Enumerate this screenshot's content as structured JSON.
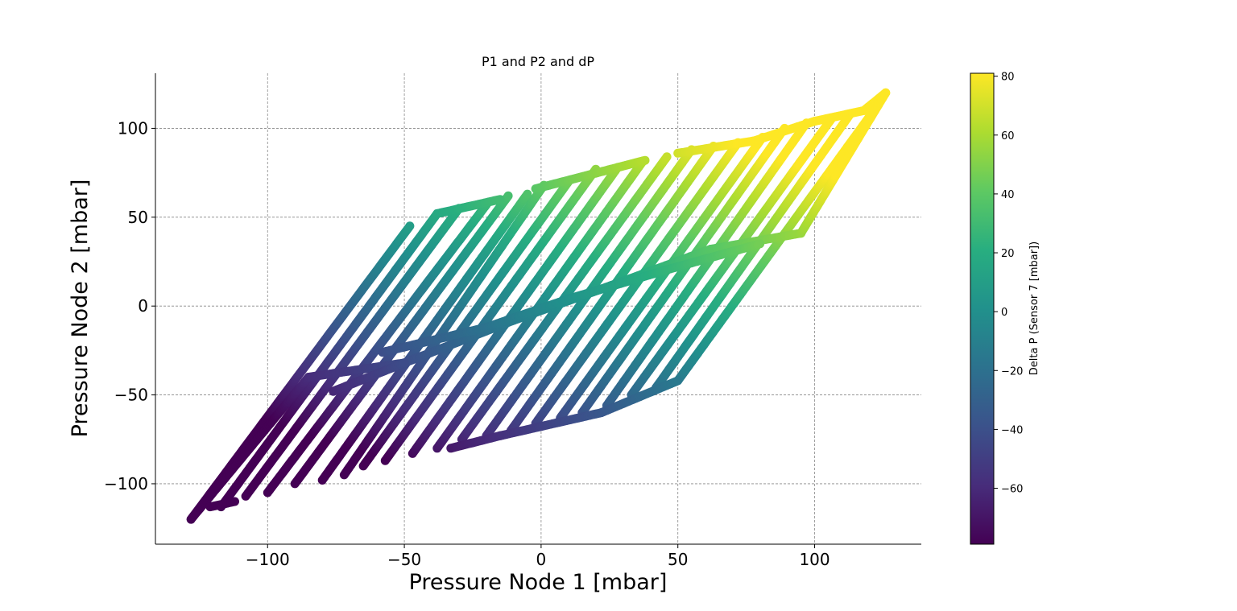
{
  "chart_data": {
    "type": "scatter",
    "title": "P1 and P2 and dP",
    "xlabel": "Pressure Node 1 [mbar]",
    "ylabel": "Pressure Node 2 [mbar]",
    "xlim": [
      -141,
      139
    ],
    "ylim": [
      -134,
      131
    ],
    "xticks": [
      -100,
      -50,
      0,
      50,
      100
    ],
    "yticks": [
      -100,
      -50,
      0,
      50,
      100
    ],
    "xtick_labels": [
      "−100",
      "−50",
      "0",
      "50",
      "100"
    ],
    "ytick_labels": [
      "−100",
      "−50",
      "0",
      "50",
      "100"
    ],
    "grid": true,
    "colormap": "viridis",
    "colorbar": {
      "label": "Delta P (Sensor 7 [mbar])",
      "range": [
        -79,
        81
      ],
      "ticks": [
        -60,
        -40,
        -20,
        0,
        20,
        40,
        60,
        80
      ],
      "tick_labels": [
        "−60",
        "−40",
        "−20",
        "0",
        "20",
        "40",
        "60",
        "80"
      ]
    },
    "series": [
      {
        "color_by": "Delta P (Sensor 7 [mbar])",
        "paths": [
          [
            [
              -128,
              -120
            ],
            [
              -48,
              45
            ]
          ],
          [
            [
              -117,
              -113
            ],
            [
              -38,
              52
            ]
          ],
          [
            [
              -108,
              -107
            ],
            [
              -30,
              55
            ]
          ],
          [
            [
              -100,
              -105
            ],
            [
              -20,
              57
            ]
          ],
          [
            [
              -90,
              -100
            ],
            [
              -12,
              62
            ]
          ],
          [
            [
              -80,
              -98
            ],
            [
              -5,
              63
            ]
          ],
          [
            [
              -72,
              -95
            ],
            [
              1,
              68
            ]
          ],
          [
            [
              -65,
              -90
            ],
            [
              10,
              70
            ]
          ],
          [
            [
              -57,
              -87
            ],
            [
              20,
              77
            ]
          ],
          [
            [
              -47,
              -83
            ],
            [
              28,
              78
            ]
          ],
          [
            [
              -38,
              -80
            ],
            [
              37,
              81
            ]
          ],
          [
            [
              -29,
              -75
            ],
            [
              46,
              84
            ]
          ],
          [
            [
              -20,
              -73
            ],
            [
              55,
              88
            ]
          ],
          [
            [
              -11,
              -70
            ],
            [
              63,
              90
            ]
          ],
          [
            [
              -2,
              -66
            ],
            [
              72,
              92
            ]
          ],
          [
            [
              7,
              -63
            ],
            [
              81,
              95
            ]
          ],
          [
            [
              15,
              -60
            ],
            [
              89,
              100
            ]
          ],
          [
            [
              24,
              -56
            ],
            [
              97,
              103
            ]
          ],
          [
            [
              33,
              -50
            ],
            [
              106,
              105
            ]
          ],
          [
            [
              42,
              -46
            ],
            [
              113,
              108
            ]
          ],
          [
            [
              50,
              -42
            ],
            [
              124,
              115
            ]
          ],
          [
            [
              -128,
              -120
            ],
            [
              -85,
              -40
            ]
          ],
          [
            [
              -85,
              -40
            ],
            [
              -50,
              -32
            ]
          ],
          [
            [
              -50,
              -32
            ],
            [
              -10,
              -8
            ]
          ],
          [
            [
              -10,
              -8
            ],
            [
              30,
              14
            ]
          ],
          [
            [
              30,
              14
            ],
            [
              62,
              32
            ]
          ],
          [
            [
              62,
              32
            ],
            [
              95,
              41
            ]
          ],
          [
            [
              -121,
              -113
            ],
            [
              -112,
              -110
            ]
          ],
          [
            [
              -33,
              -80
            ],
            [
              -15,
              -73
            ]
          ],
          [
            [
              -15,
              -73
            ],
            [
              22,
              -60
            ]
          ],
          [
            [
              22,
              -60
            ],
            [
              50,
              -42
            ]
          ],
          [
            [
              -38,
              52
            ],
            [
              -15,
              60
            ]
          ],
          [
            [
              -2,
              66
            ],
            [
              38,
              82
            ]
          ],
          [
            [
              50,
              86
            ],
            [
              78,
              93
            ]
          ],
          [
            [
              78,
              93
            ],
            [
              100,
              104
            ]
          ],
          [
            [
              100,
              104
            ],
            [
              118,
              110
            ]
          ],
          [
            [
              118,
              110
            ],
            [
              126,
              120
            ]
          ],
          [
            [
              95,
              41
            ],
            [
              126,
              120
            ]
          ],
          [
            [
              -76,
              -48
            ],
            [
              -50,
              -32
            ]
          ],
          [
            [
              -58,
              -26
            ],
            [
              -20,
              -12
            ]
          ],
          [
            [
              -20,
              -12
            ],
            [
              10,
              4
            ]
          ],
          [
            [
              10,
              4
            ],
            [
              45,
              20
            ]
          ],
          [
            [
              45,
              20
            ],
            [
              80,
              35
            ]
          ]
        ]
      }
    ]
  }
}
